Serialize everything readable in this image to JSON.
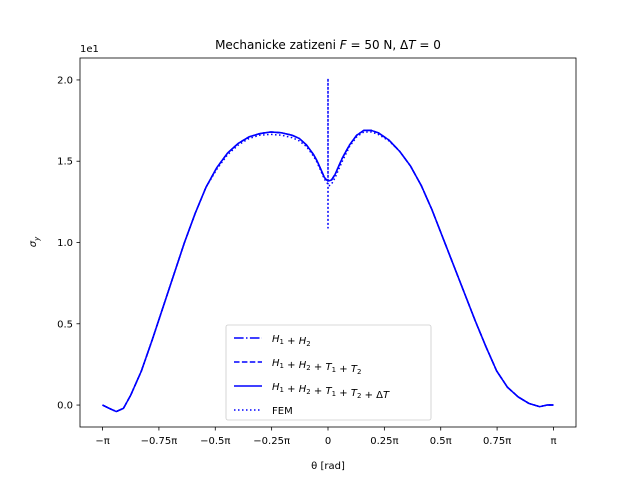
{
  "chart_data": {
    "type": "line",
    "title": "Mechanicke zatizeni F = 50 N, ΔT = 0",
    "title_parts": {
      "main": "Mechanicke zatizeni ",
      "f_var": "F",
      "f_rest": " = 50 N, ",
      "delta": "Δ",
      "t_var": "T",
      "t_rest": " = 0"
    },
    "xlabel": "θ [rad]",
    "ylabel": "σ",
    "ylabel_sub": "y",
    "y_offset_text": "1e1",
    "xlim": [
      -3.4557,
      3.4557
    ],
    "ylim": [
      -0.135,
      2.135
    ],
    "x_ticks": [
      {
        "value": -3.14159,
        "label": "−π"
      },
      {
        "value": -2.35619,
        "label": "−0.75π"
      },
      {
        "value": -1.5708,
        "label": "−0.5π"
      },
      {
        "value": -0.7854,
        "label": "−0.25π"
      },
      {
        "value": 0,
        "label": "0"
      },
      {
        "value": 0.7854,
        "label": "0.25π"
      },
      {
        "value": 1.5708,
        "label": "0.5π"
      },
      {
        "value": 2.35619,
        "label": "0.75π"
      },
      {
        "value": 3.14159,
        "label": "π"
      }
    ],
    "y_ticks": [
      {
        "value": 0.0,
        "label": "0.0"
      },
      {
        "value": 0.5,
        "label": "0.5"
      },
      {
        "value": 1.0,
        "label": "1.0"
      },
      {
        "value": 1.5,
        "label": "1.5"
      },
      {
        "value": 2.0,
        "label": "2.0"
      }
    ],
    "grid": false,
    "legend_position": "lower center",
    "series": [
      {
        "name": "H1 + H2",
        "legend_parts": [
          "H",
          "1",
          " + ",
          "H",
          "2"
        ],
        "color": "#0000ff",
        "style": "dashdot",
        "x": [
          -3.1416,
          -3.05,
          -2.95,
          -2.85,
          -2.75,
          -2.6,
          -2.45,
          -2.3,
          -2.15,
          -2.0,
          -1.85,
          -1.7,
          -1.55,
          -1.4,
          -1.25,
          -1.1,
          -0.95,
          -0.8,
          -0.65,
          -0.5,
          -0.4,
          -0.3,
          -0.2,
          -0.15,
          -0.1,
          -0.05,
          -0.02,
          0.0,
          0.02,
          0.05,
          0.1,
          0.15,
          0.2,
          0.3,
          0.4,
          0.5,
          0.6,
          0.7,
          0.85,
          1.0,
          1.15,
          1.3,
          1.45,
          1.6,
          1.75,
          1.9,
          2.05,
          2.2,
          2.35,
          2.5,
          2.65,
          2.8,
          2.95,
          3.05,
          3.1416
        ],
        "y": [
          0.0,
          -0.02,
          -0.04,
          -0.02,
          0.06,
          0.21,
          0.4,
          0.6,
          0.8,
          1.0,
          1.18,
          1.34,
          1.46,
          1.55,
          1.61,
          1.65,
          1.67,
          1.68,
          1.675,
          1.66,
          1.64,
          1.6,
          1.54,
          1.5,
          1.45,
          1.4,
          1.385,
          1.38,
          1.38,
          1.385,
          1.42,
          1.47,
          1.52,
          1.6,
          1.66,
          1.69,
          1.69,
          1.675,
          1.63,
          1.56,
          1.47,
          1.35,
          1.2,
          1.03,
          0.86,
          0.69,
          0.52,
          0.36,
          0.21,
          0.11,
          0.05,
          0.01,
          -0.01,
          0.0,
          0.0
        ]
      },
      {
        "name": "H1 + H2 + T1 + T2",
        "legend_parts": [
          "H",
          "1",
          " + ",
          "H",
          "2",
          " + ",
          "T",
          "1",
          " + ",
          "T",
          "2"
        ],
        "color": "#0000ff",
        "style": "dashed",
        "x": [
          -3.1416,
          -3.05,
          -2.95,
          -2.85,
          -2.75,
          -2.6,
          -2.45,
          -2.3,
          -2.15,
          -2.0,
          -1.85,
          -1.7,
          -1.55,
          -1.4,
          -1.25,
          -1.1,
          -0.95,
          -0.8,
          -0.65,
          -0.5,
          -0.4,
          -0.3,
          -0.2,
          -0.15,
          -0.1,
          -0.05,
          -0.02,
          0.0,
          0.02,
          0.05,
          0.1,
          0.15,
          0.2,
          0.3,
          0.4,
          0.5,
          0.6,
          0.7,
          0.85,
          1.0,
          1.15,
          1.3,
          1.45,
          1.6,
          1.75,
          1.9,
          2.05,
          2.2,
          2.35,
          2.5,
          2.65,
          2.8,
          2.95,
          3.05,
          3.1416
        ],
        "y": [
          0.0,
          -0.02,
          -0.04,
          -0.02,
          0.06,
          0.21,
          0.4,
          0.6,
          0.8,
          1.0,
          1.18,
          1.34,
          1.46,
          1.55,
          1.61,
          1.65,
          1.67,
          1.68,
          1.675,
          1.66,
          1.64,
          1.6,
          1.54,
          1.5,
          1.45,
          1.4,
          1.385,
          1.38,
          1.38,
          1.385,
          1.42,
          1.47,
          1.52,
          1.6,
          1.66,
          1.69,
          1.69,
          1.675,
          1.63,
          1.56,
          1.47,
          1.35,
          1.2,
          1.03,
          0.86,
          0.69,
          0.52,
          0.36,
          0.21,
          0.11,
          0.05,
          0.01,
          -0.01,
          0.0,
          0.0
        ]
      },
      {
        "name": "H1 + H2 + T1 + T2 + ΔT",
        "legend_parts": [
          "H",
          "1",
          " + ",
          "H",
          "2",
          " + ",
          "T",
          "1",
          " + ",
          "T",
          "2",
          " + Δ",
          "T"
        ],
        "color": "#0000ff",
        "style": "solid",
        "x": [
          -3.1416,
          -3.05,
          -2.95,
          -2.85,
          -2.75,
          -2.6,
          -2.45,
          -2.3,
          -2.15,
          -2.0,
          -1.85,
          -1.7,
          -1.55,
          -1.4,
          -1.25,
          -1.1,
          -0.95,
          -0.8,
          -0.65,
          -0.5,
          -0.4,
          -0.3,
          -0.2,
          -0.15,
          -0.1,
          -0.05,
          -0.02,
          0.0,
          0.02,
          0.05,
          0.1,
          0.15,
          0.2,
          0.3,
          0.4,
          0.5,
          0.6,
          0.7,
          0.85,
          1.0,
          1.15,
          1.3,
          1.45,
          1.6,
          1.75,
          1.9,
          2.05,
          2.2,
          2.35,
          2.5,
          2.65,
          2.8,
          2.95,
          3.05,
          3.1416
        ],
        "y": [
          0.0,
          -0.02,
          -0.04,
          -0.02,
          0.06,
          0.21,
          0.4,
          0.6,
          0.8,
          1.0,
          1.18,
          1.34,
          1.46,
          1.55,
          1.61,
          1.65,
          1.67,
          1.68,
          1.675,
          1.66,
          1.64,
          1.6,
          1.54,
          1.5,
          1.45,
          1.4,
          1.385,
          1.38,
          1.38,
          1.385,
          1.42,
          1.47,
          1.52,
          1.6,
          1.66,
          1.69,
          1.69,
          1.675,
          1.63,
          1.56,
          1.47,
          1.35,
          1.2,
          1.03,
          0.86,
          0.69,
          0.52,
          0.36,
          0.21,
          0.11,
          0.05,
          0.01,
          -0.01,
          0.0,
          0.0
        ]
      },
      {
        "name": "FEM",
        "legend_parts": [
          "FEM"
        ],
        "color": "#0000ff",
        "style": "dotted",
        "x": [
          -3.1416,
          -3.05,
          -2.95,
          -2.85,
          -2.75,
          -2.6,
          -2.45,
          -2.3,
          -2.15,
          -2.0,
          -1.85,
          -1.7,
          -1.55,
          -1.4,
          -1.25,
          -1.1,
          -0.95,
          -0.8,
          -0.65,
          -0.5,
          -0.4,
          -0.3,
          -0.2,
          -0.15,
          -0.1,
          -0.05,
          -0.02,
          0.0,
          0.0,
          0.0,
          0.0,
          0.02,
          0.05,
          0.1,
          0.15,
          0.2,
          0.3,
          0.4,
          0.5,
          0.6,
          0.7,
          0.85,
          1.0,
          1.15,
          1.3,
          1.45,
          1.6,
          1.75,
          1.9,
          2.05,
          2.2,
          2.35,
          2.5,
          2.65,
          2.8,
          2.95,
          3.05,
          3.1416
        ],
        "y": [
          0.0,
          -0.02,
          -0.04,
          -0.02,
          0.06,
          0.21,
          0.4,
          0.6,
          0.8,
          1.0,
          1.18,
          1.34,
          1.45,
          1.54,
          1.6,
          1.64,
          1.66,
          1.665,
          1.66,
          1.645,
          1.625,
          1.59,
          1.53,
          1.49,
          1.44,
          1.39,
          1.37,
          1.36,
          2.01,
          1.09,
          1.35,
          1.35,
          1.36,
          1.4,
          1.45,
          1.5,
          1.59,
          1.65,
          1.68,
          1.68,
          1.665,
          1.625,
          1.56,
          1.47,
          1.35,
          1.2,
          1.03,
          0.86,
          0.69,
          0.52,
          0.36,
          0.21,
          0.11,
          0.05,
          0.01,
          -0.01,
          0.0,
          0.0
        ]
      }
    ]
  }
}
